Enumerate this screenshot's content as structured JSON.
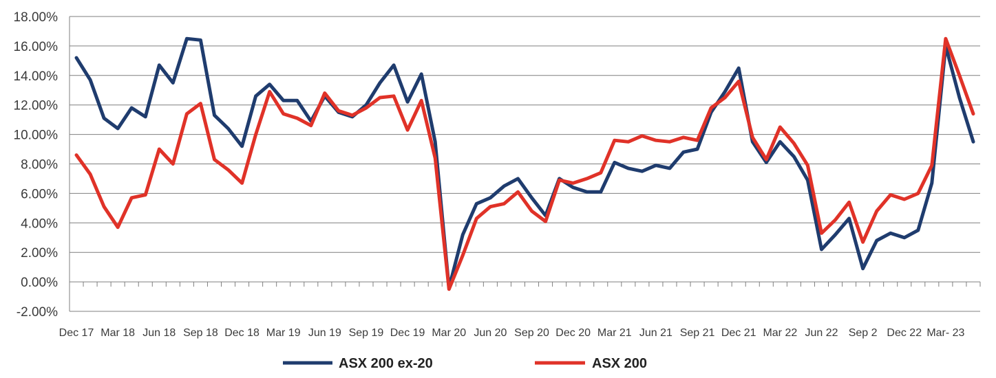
{
  "chart_data": {
    "type": "line",
    "title": "",
    "xlabel": "",
    "ylabel": "",
    "ylim": [
      -2,
      18
    ],
    "y_ticks": [
      "18.00%",
      "16.00%",
      "14.00%",
      "12.00%",
      "10.00%",
      "8.00%",
      "6.00%",
      "4.00%",
      "2.00%",
      "0.00%",
      "-2.00%"
    ],
    "x_tick_labels": [
      "Dec 17",
      "Mar 18",
      "Jun 18",
      "Sep 18",
      "Dec 18",
      "Mar 19",
      "Jun 19",
      "Sep 19",
      "Dec 19",
      "Mar 20",
      "Jun 20",
      "Sep 20",
      "Dec 20",
      "Mar 21",
      "Jun 21",
      "Sep 21",
      "Dec 21",
      "Mar 22",
      "Jun 22",
      "Sep 2",
      "Dec 22",
      "Mar- 23"
    ],
    "grid": true,
    "legend_position": "bottom",
    "series": [
      {
        "name": "ASX 200 ex-20",
        "color": "#1f3c6e",
        "values": [
          15.2,
          13.7,
          11.1,
          10.4,
          11.8,
          11.2,
          14.7,
          13.5,
          16.5,
          16.4,
          11.3,
          10.4,
          9.2,
          12.6,
          13.4,
          12.3,
          12.3,
          10.9,
          12.6,
          11.5,
          11.2,
          12.0,
          13.5,
          14.7,
          12.2,
          14.1,
          9.5,
          -0.4,
          3.2,
          5.3,
          5.7,
          6.5,
          7.0,
          5.7,
          4.5,
          7.0,
          6.4,
          6.1,
          6.1,
          8.1,
          7.7,
          7.5,
          7.9,
          7.7,
          8.8,
          9.0,
          11.5,
          12.9,
          14.5,
          9.5,
          8.1,
          9.5,
          8.5,
          6.9,
          2.2,
          3.2,
          4.3,
          0.9,
          2.8,
          3.3,
          3.0,
          3.5,
          6.7,
          16.0,
          12.5,
          9.5
        ]
      },
      {
        "name": "ASX 200",
        "color": "#e03228",
        "values": [
          8.6,
          7.3,
          5.1,
          3.7,
          5.7,
          5.9,
          9.0,
          8.0,
          11.4,
          12.1,
          8.3,
          7.6,
          6.7,
          10.0,
          12.9,
          11.4,
          11.1,
          10.6,
          12.8,
          11.6,
          11.3,
          11.8,
          12.5,
          12.6,
          10.3,
          12.3,
          8.4,
          -0.5,
          1.8,
          4.3,
          5.1,
          5.3,
          6.1,
          4.8,
          4.1,
          6.9,
          6.7,
          7.0,
          7.4,
          9.6,
          9.5,
          9.9,
          9.6,
          9.5,
          9.8,
          9.6,
          11.8,
          12.5,
          13.6,
          9.8,
          8.3,
          10.5,
          9.4,
          7.9,
          3.3,
          4.2,
          5.4,
          2.7,
          4.8,
          5.9,
          5.6,
          6.0,
          7.9,
          16.5,
          14.0,
          11.4
        ]
      }
    ]
  }
}
